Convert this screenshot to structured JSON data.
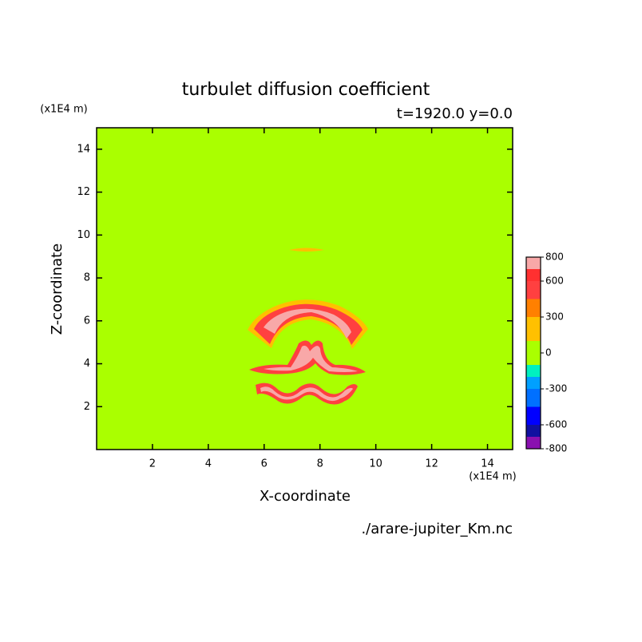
{
  "chart_data": {
    "type": "contour",
    "title": "turbulet diffusion coefficient",
    "subtitle": "t=1920.0 y=0.0",
    "x_label": "X-coordinate",
    "y_label": "Z-coordinate",
    "x_unit": "(x1E4 m)",
    "y_unit": "(x1E4 m)",
    "source": "./arare-jupiter_Km.nc",
    "xlim": [
      0,
      14.9
    ],
    "ylim": [
      0,
      15
    ],
    "xticks": [
      2,
      4,
      6,
      8,
      10,
      12,
      14
    ],
    "yticks": [
      2,
      4,
      6,
      8,
      10,
      12,
      14
    ],
    "levels": [
      -800,
      -700,
      -600,
      -450,
      -300,
      -200,
      -100,
      100,
      300,
      450,
      600,
      700,
      800
    ],
    "colors": [
      "#8a10b0",
      "#1010a0",
      "#0000ff",
      "#0070ff",
      "#00a0ff",
      "#00f0c0",
      "#aaff00",
      "#ffc000",
      "#ff8000",
      "#ff4040",
      "#ff3030",
      "#f8a8a8"
    ],
    "colorbar_ticks": [
      -800,
      -600,
      -300,
      0,
      300,
      600,
      800
    ]
  }
}
